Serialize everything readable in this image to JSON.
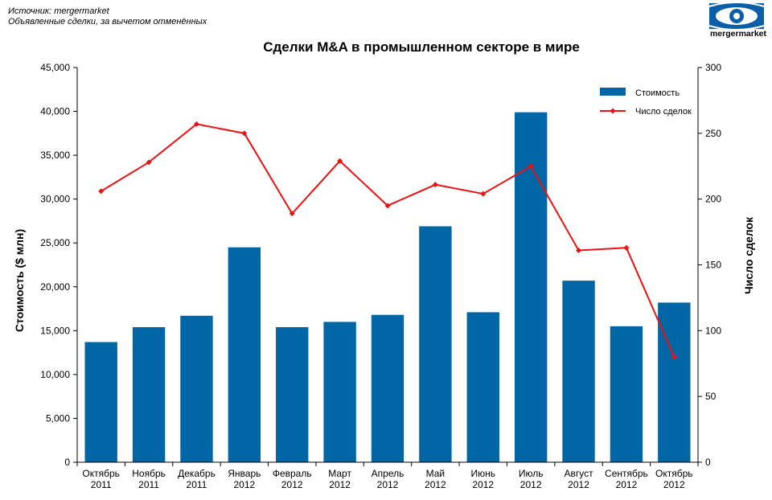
{
  "header": {
    "source_line1": "Источник: mergermarket",
    "source_line2": "Объявленные сделки, за вычетом отменённых",
    "logo_text": "mergermarket",
    "logo_color": "#0a5fa8"
  },
  "chart_data": {
    "type": "bar",
    "title": "Сделки M&A в промышленном секторе в мире",
    "categories": [
      [
        "Октябрь",
        "2011"
      ],
      [
        "Ноябрь",
        "2011"
      ],
      [
        "Декабрь",
        "2011"
      ],
      [
        "Январь",
        "2012"
      ],
      [
        "Февраль",
        "2012"
      ],
      [
        "Март",
        "2012"
      ],
      [
        "Апрель",
        "2012"
      ],
      [
        "Май",
        "2012"
      ],
      [
        "Июнь",
        "2012"
      ],
      [
        "Июль",
        "2012"
      ],
      [
        "Август",
        "2012"
      ],
      [
        "Сентябрь",
        "2012"
      ],
      [
        "Октябрь",
        "2012"
      ]
    ],
    "series": [
      {
        "name": "Стоимость",
        "type": "bar",
        "axis": "left",
        "color": "#0066a6",
        "values": [
          13700,
          15400,
          16700,
          24500,
          15400,
          16000,
          16800,
          26900,
          17100,
          39900,
          20700,
          15500,
          18200
        ]
      },
      {
        "name": "Число сделок",
        "type": "line",
        "axis": "right",
        "color": "#ee1111",
        "values": [
          206,
          228,
          257,
          250,
          189,
          229,
          195,
          211,
          204,
          225,
          161,
          163,
          80
        ]
      }
    ],
    "ylabel": "Стоимость ($ млн)",
    "y2label": "Число сделок",
    "ylim": [
      0,
      45000
    ],
    "y2lim": [
      0,
      300
    ],
    "yticks": [
      "0",
      "5,000",
      "10,000",
      "15,000",
      "20,000",
      "25,000",
      "30,000",
      "35,000",
      "40,000",
      "45,000"
    ],
    "y2ticks": [
      "0",
      "50",
      "100",
      "150",
      "200",
      "250",
      "300"
    ],
    "grid": false,
    "legend": "top-right"
  }
}
